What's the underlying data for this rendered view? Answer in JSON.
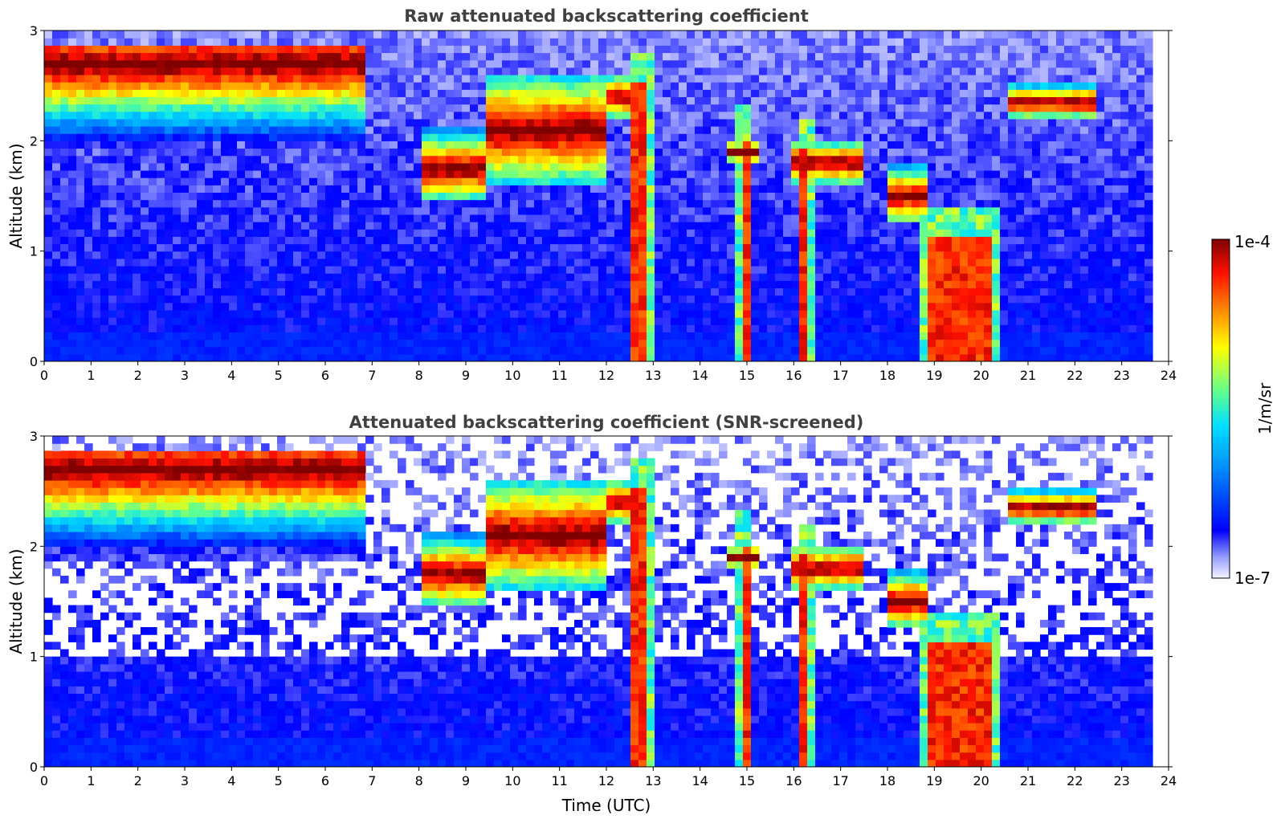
{
  "chart_data": [
    {
      "type": "heatmap",
      "title": "Raw attenuated backscattering coefficient",
      "xlabel": "",
      "ylabel": "Altitude (km)",
      "xlim": [
        0,
        24
      ],
      "ylim": [
        0,
        3
      ],
      "xticks": [
        "0",
        "1",
        "2",
        "3",
        "4",
        "5",
        "6",
        "7",
        "8",
        "9",
        "10",
        "11",
        "12",
        "13",
        "14",
        "15",
        "16",
        "17",
        "18",
        "19",
        "20",
        "21",
        "22",
        "23",
        "24"
      ],
      "yticks": [
        "0",
        "1",
        "2",
        "3"
      ],
      "data_end_hour": 23.7,
      "cloud_layers": [
        {
          "start": 0.0,
          "end": 6.9,
          "base_km": 1.9,
          "top_km": 2.85,
          "peak_km": 2.7
        },
        {
          "start": 8.0,
          "end": 9.5,
          "base_km": 1.5,
          "top_km": 2.1,
          "peak_km": 1.75
        },
        {
          "start": 9.5,
          "end": 12.0,
          "base_km": 1.6,
          "top_km": 2.6,
          "peak_km": 2.1
        },
        {
          "start": 12.0,
          "end": 12.5,
          "base_km": 2.2,
          "top_km": 2.6,
          "peak_km": 2.4
        },
        {
          "start": 14.5,
          "end": 15.3,
          "base_km": 1.8,
          "top_km": 2.0,
          "peak_km": 1.9
        },
        {
          "start": 16.0,
          "end": 17.4,
          "base_km": 1.6,
          "top_km": 2.0,
          "peak_km": 1.8
        },
        {
          "start": 18.0,
          "end": 18.9,
          "base_km": 1.3,
          "top_km": 1.8,
          "peak_km": 1.5
        },
        {
          "start": 20.5,
          "end": 22.5,
          "base_km": 2.2,
          "top_km": 2.5,
          "peak_km": 2.35
        }
      ],
      "precip_columns": [
        {
          "start": 12.6,
          "end": 12.8,
          "top_km": 2.5
        },
        {
          "start": 14.85,
          "end": 15.0,
          "top_km": 2.0
        },
        {
          "start": 16.2,
          "end": 16.35,
          "top_km": 1.9
        },
        {
          "start": 18.9,
          "end": 20.2,
          "top_km": 1.1
        }
      ]
    },
    {
      "type": "heatmap",
      "title": "Attenuated backscattering coefficient (SNR-screened)",
      "xlabel": "Time (UTC)",
      "ylabel": "Altitude (km)",
      "xlim": [
        0,
        24
      ],
      "ylim": [
        0,
        3
      ],
      "xticks": [
        "0",
        "1",
        "2",
        "3",
        "4",
        "5",
        "6",
        "7",
        "8",
        "9",
        "10",
        "11",
        "12",
        "13",
        "14",
        "15",
        "16",
        "17",
        "18",
        "19",
        "20",
        "21",
        "22",
        "23",
        "24"
      ],
      "yticks": [
        "0",
        "1",
        "2",
        "3"
      ],
      "data_end_hour": 23.7,
      "screened": true
    }
  ],
  "colorbar": {
    "label": "1/m/sr",
    "max_label": "1e-4",
    "min_label": "1e-7",
    "scale": "log",
    "range": [
      1e-07,
      0.0001
    ],
    "colormap": "jet"
  }
}
